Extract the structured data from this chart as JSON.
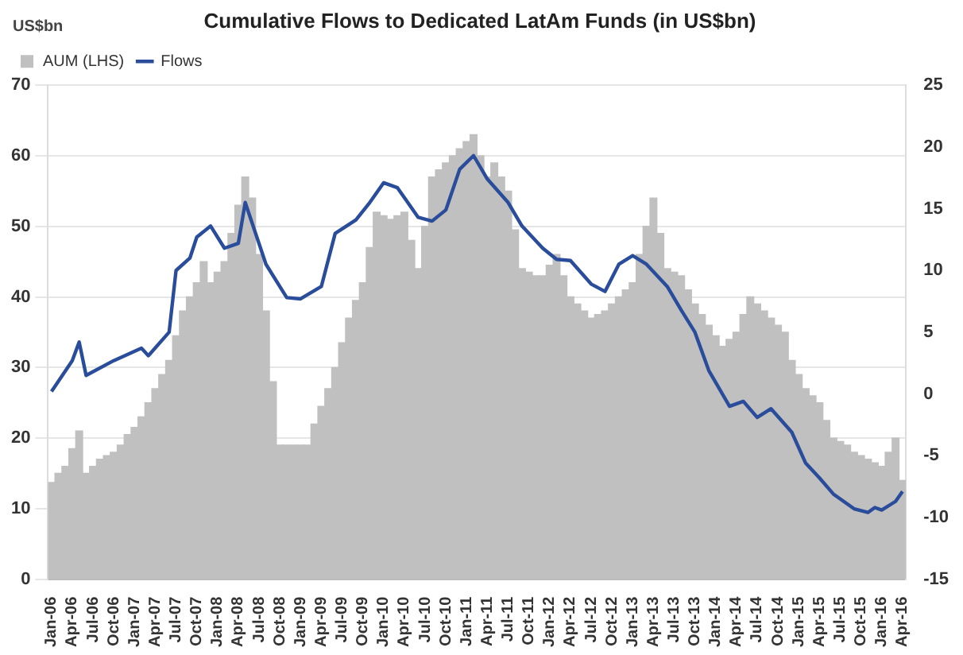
{
  "chart_data": {
    "type": "bar",
    "title": "Cumulative Flows to Dedicated LatAm Funds (in US$bn)",
    "ylabel": "US$bn",
    "categories": [
      "Jan-06",
      null,
      null,
      "Apr-06",
      null,
      null,
      "Jul-06",
      null,
      null,
      "Oct-06",
      null,
      null,
      "Jan-07",
      null,
      null,
      "Apr-07",
      null,
      null,
      "Jul-07",
      null,
      null,
      "Oct-07",
      null,
      null,
      "Jan-08",
      null,
      null,
      "Apr-08",
      null,
      null,
      "Jul-08",
      null,
      null,
      "Oct-08",
      null,
      null,
      "Jan-09",
      null,
      null,
      "Apr-09",
      null,
      null,
      "Jul-09",
      null,
      null,
      "Oct-09",
      null,
      null,
      "Jan-10",
      null,
      null,
      "Apr-10",
      null,
      null,
      "Jul-10",
      null,
      null,
      "Oct-10",
      null,
      null,
      "Jan-11",
      null,
      null,
      "Apr-11",
      null,
      null,
      "Jul-11",
      null,
      null,
      "Oct-11",
      null,
      null,
      "Jan-12",
      null,
      null,
      "Apr-12",
      null,
      null,
      "Jul-12",
      null,
      null,
      "Oct-12",
      null,
      null,
      "Jan-13",
      null,
      null,
      "Apr-13",
      null,
      null,
      "Jul-13",
      null,
      null,
      "Oct-13",
      null,
      null,
      "Jan-14",
      null,
      null,
      "Apr-14",
      null,
      null,
      "Jul-14",
      null,
      null,
      "Oct-14",
      null,
      null,
      "Jan-15",
      null,
      null,
      "Apr-15",
      null,
      null,
      "Jul-15",
      null,
      null,
      "Oct-15",
      null,
      null,
      "Jan-16",
      null,
      null,
      "Apr-16"
    ],
    "series": [
      {
        "name": "AUM (LHS)",
        "color": "#c0c0c0",
        "values": [
          13.7,
          15,
          16,
          18.5,
          21,
          15,
          16,
          17,
          17.5,
          18,
          19,
          20.5,
          21.5,
          23,
          25,
          27,
          29,
          31,
          34.5,
          38,
          40,
          42,
          45,
          42,
          43.5,
          45,
          49,
          53,
          57,
          54,
          46,
          38,
          28,
          19,
          19,
          19,
          19,
          19,
          22,
          24.5,
          27,
          30,
          33.5,
          37,
          39.5,
          42,
          47,
          52,
          51.5,
          51,
          51.5,
          52,
          48,
          44,
          50,
          57,
          58,
          59,
          60,
          61,
          62,
          63,
          60,
          57,
          59,
          57,
          55,
          49.5,
          44,
          43.5,
          43,
          43,
          44.5,
          46,
          43,
          40,
          39,
          38,
          37,
          37.5,
          38,
          39,
          40,
          41,
          42,
          46,
          50,
          54,
          49,
          44,
          43.5,
          43,
          41,
          39,
          37.5,
          36,
          34.5,
          33,
          34,
          35,
          37.5,
          40,
          39,
          38,
          37,
          36,
          35,
          31,
          29,
          27,
          26,
          25,
          22.5,
          20,
          19.5,
          19,
          18,
          17.5,
          17,
          16.5,
          16,
          18,
          20,
          14
        ]
      },
      {
        "name": "Flows",
        "type": "line",
        "axis": "y2",
        "color": "#2a4d9b",
        "values": [
          0.2,
          null,
          null,
          2.7,
          4.2,
          1.5,
          null,
          null,
          null,
          2.7,
          null,
          null,
          null,
          3.7,
          3.1,
          null,
          null,
          5,
          10,
          null,
          11,
          12.7,
          null,
          13.6,
          null,
          11.8,
          null,
          12.2,
          15.5,
          null,
          null,
          10.5,
          null,
          null,
          7.8,
          null,
          7.7,
          null,
          null,
          8.7,
          null,
          13,
          null,
          null,
          14.1,
          null,
          15.5,
          null,
          17.1,
          null,
          16.7,
          null,
          null,
          14.3,
          null,
          14,
          null,
          14.9,
          null,
          18.2,
          null,
          19.3,
          null,
          17.4,
          null,
          null,
          15.5,
          null,
          13.6,
          null,
          null,
          11.8,
          null,
          10.9,
          null,
          10.8,
          null,
          null,
          8.9,
          null,
          8.3,
          null,
          10.5,
          null,
          11.2,
          null,
          10.5,
          null,
          null,
          8.7,
          null,
          6.8,
          null,
          5,
          null,
          1.9,
          null,
          null,
          -1,
          null,
          -0.6,
          null,
          -1.9,
          null,
          -1.2,
          null,
          null,
          -3.1,
          null,
          -5.6,
          null,
          -6.8,
          null,
          -8.1,
          null,
          null,
          -9.3,
          null,
          -9.6,
          -9.2,
          -9.4,
          null,
          -8.7,
          -7.9
        ]
      }
    ],
    "ylim": [
      0,
      70
    ],
    "yticks": [
      0,
      10,
      20,
      30,
      40,
      50,
      60,
      70
    ],
    "y2lim": [
      -15,
      25
    ],
    "y2ticks": [
      -15,
      -10,
      -5,
      0,
      5,
      10,
      15,
      20,
      25
    ],
    "grid": "y",
    "legend": "top left",
    "marker": "none",
    "line_style": "solid"
  }
}
